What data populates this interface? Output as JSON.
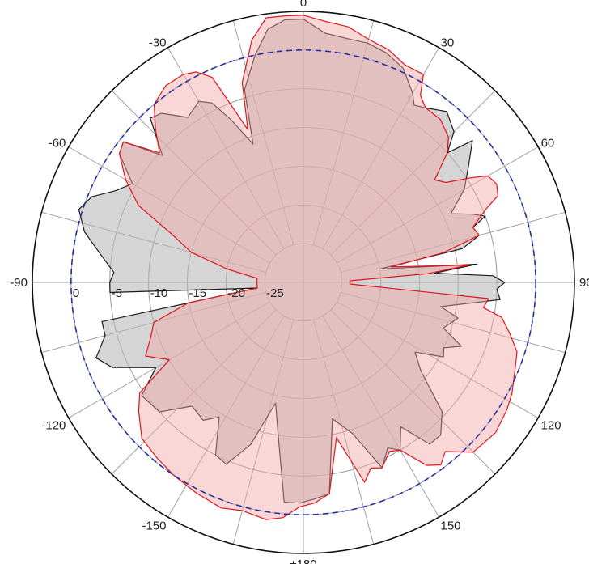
{
  "chart_data": {
    "type": "polar-area",
    "angle_unit": "degrees",
    "angle_zero": "top",
    "angle_direction": "clockwise",
    "angle_ticks": [
      0,
      30,
      60,
      90,
      120,
      150,
      180,
      -150,
      -120,
      -90,
      -60,
      -30
    ],
    "angle_tick_labels": [
      "0",
      "30",
      "60",
      "90",
      "120",
      "150",
      "±180",
      "-150",
      "-120",
      "-90",
      "-60",
      "-30"
    ],
    "r_range": [
      -30,
      5
    ],
    "r_ticks": [
      -25,
      -20,
      -15,
      -10,
      -5,
      0
    ],
    "r_tick_labels": [
      "-25",
      "-20",
      "-15",
      "-10",
      "-5",
      "0"
    ],
    "r_label_angle": -90,
    "reference_level": 0,
    "grid": true,
    "colors": {
      "series_black_line": "#1a1a1a",
      "series_black_fill": "#b9b9b9",
      "series_red_line": "#e0151b",
      "series_red_fill": "#f4a7a7",
      "reference_line": "#1f2ea8",
      "grid": "#a0a0a0"
    },
    "series": [
      {
        "style": "black",
        "points": [
          [
            0,
            4.0
          ],
          [
            5,
            2.3
          ],
          [
            10,
            2.0
          ],
          [
            15,
            2.0
          ],
          [
            20,
            1.5
          ],
          [
            25,
            0.5
          ],
          [
            30,
            -1.8
          ],
          [
            32,
            -3.0
          ],
          [
            35,
            -2.5
          ],
          [
            40,
            -1.2
          ],
          [
            45,
            -2.5
          ],
          [
            48,
            -5.0
          ],
          [
            50,
            -1.5
          ],
          [
            55,
            -4.0
          ],
          [
            60,
            -6.0
          ],
          [
            65,
            -9.0
          ],
          [
            68,
            -6.5
          ],
          [
            70,
            -5.0
          ],
          [
            72,
            -7.0
          ],
          [
            75,
            -6.5
          ],
          [
            78,
            -9.0
          ],
          [
            80,
            -20.0
          ],
          [
            84,
            -7.5
          ],
          [
            86,
            -13.0
          ],
          [
            88,
            -5.5
          ],
          [
            90,
            -4.0
          ],
          [
            92,
            -5.0
          ],
          [
            95,
            -4.5
          ],
          [
            100,
            -12.0
          ],
          [
            103,
            -9.5
          ],
          [
            108,
            -11.0
          ],
          [
            112,
            -8.0
          ],
          [
            115,
            -10.0
          ],
          [
            118,
            -9.5
          ],
          [
            122,
            -13.0
          ],
          [
            127,
            -11.0
          ],
          [
            133,
            -5.5
          ],
          [
            138,
            -3.5
          ],
          [
            142,
            -3.5
          ],
          [
            146,
            -7.5
          ],
          [
            150,
            -5.0
          ],
          [
            153,
            -6.0
          ],
          [
            157,
            -4.0
          ],
          [
            162,
            -9.5
          ],
          [
            168,
            -12.0
          ],
          [
            173,
            -2.5
          ],
          [
            177,
            -2.0
          ],
          [
            181,
            -1.5
          ],
          [
            185,
            -1.5
          ],
          [
            189,
            -9.5
          ],
          [
            193,
            -14.0
          ],
          [
            198,
            -8.0
          ],
          [
            203,
            -4.5
          ],
          [
            207,
            -5.0
          ],
          [
            212,
            -9.5
          ],
          [
            216,
            -8.0
          ],
          [
            222,
            -8.5
          ],
          [
            228,
            -5.0
          ],
          [
            235,
            -4.5
          ],
          [
            240,
            -8.0
          ],
          [
            246,
            -3.0
          ],
          [
            250,
            -1.5
          ],
          [
            255,
            -3.5
          ],
          [
            259,
            -3.5
          ],
          [
            263,
            -24.0
          ],
          [
            267,
            -5.0
          ],
          [
            270,
            -5.0
          ],
          [
            273,
            -5.5
          ],
          [
            278,
            -3.5
          ],
          [
            283,
            -1.0
          ],
          [
            288,
            0.5
          ],
          [
            292,
            -0.5
          ],
          [
            296,
            -3.0
          ],
          [
            300,
            -4.5
          ],
          [
            305,
            -1.0
          ],
          [
            308,
            -0.5
          ],
          [
            312,
            -5.5
          ],
          [
            317,
            -1.0
          ],
          [
            320,
            -1.5
          ],
          [
            325,
            -4.0
          ],
          [
            330,
            -3.0
          ],
          [
            333,
            -4.0
          ],
          [
            336,
            -7.0
          ],
          [
            340,
            -11.0
          ],
          [
            343,
            -4.0
          ],
          [
            348,
            0.0
          ],
          [
            352,
            3.0
          ],
          [
            356,
            4.0
          ],
          [
            360,
            4.0
          ]
        ]
      },
      {
        "style": "red",
        "points": [
          [
            0,
            4.5
          ],
          [
            5,
            3.8
          ],
          [
            10,
            3.5
          ],
          [
            15,
            2.5
          ],
          [
            20,
            2.0
          ],
          [
            25,
            1.0
          ],
          [
            30,
            1.0
          ],
          [
            32,
            -1.5
          ],
          [
            35,
            -2.5
          ],
          [
            40,
            -2.5
          ],
          [
            45,
            -3.5
          ],
          [
            48,
            -5.0
          ],
          [
            52,
            -8.5
          ],
          [
            55,
            -7.5
          ],
          [
            58,
            -4.5
          ],
          [
            60,
            -2.5
          ],
          [
            63,
            -2.0
          ],
          [
            66,
            -2.5
          ],
          [
            68,
            -4.5
          ],
          [
            72,
            -7.0
          ],
          [
            75,
            -6.5
          ],
          [
            78,
            -11.5
          ],
          [
            80,
            -18.5
          ],
          [
            84,
            -8.5
          ],
          [
            86,
            -14.0
          ],
          [
            88,
            -24.0
          ],
          [
            90,
            -24.0
          ],
          [
            92,
            -24.0
          ],
          [
            95,
            -6.0
          ],
          [
            98,
            -6.5
          ],
          [
            100,
            -4.0
          ],
          [
            104,
            -2.5
          ],
          [
            108,
            -1.0
          ],
          [
            112,
            -0.5
          ],
          [
            118,
            0.5
          ],
          [
            122,
            1.0
          ],
          [
            128,
            1.5
          ],
          [
            135,
            1.0
          ],
          [
            140,
            -1.5
          ],
          [
            143,
            -0.5
          ],
          [
            146,
            -1.5
          ],
          [
            150,
            -5.0
          ],
          [
            153,
            -5.5
          ],
          [
            157,
            -4.0
          ],
          [
            160,
            -4.5
          ],
          [
            163,
            -3.0
          ],
          [
            168,
            -9.5
          ],
          [
            173,
            -2.5
          ],
          [
            177,
            -1.5
          ],
          [
            181,
            -1.0
          ],
          [
            185,
            0.5
          ],
          [
            189,
            1.0
          ],
          [
            195,
            0.5
          ],
          [
            200,
            1.0
          ],
          [
            207,
            0.5
          ],
          [
            214,
            0.0
          ],
          [
            220,
            -0.5
          ],
          [
            226,
            -1.0
          ],
          [
            232,
            -3.0
          ],
          [
            236,
            -4.5
          ],
          [
            240,
            -10.0
          ],
          [
            245,
            -7.5
          ],
          [
            250,
            -9.0
          ],
          [
            255,
            -10.0
          ],
          [
            260,
            -15.0
          ],
          [
            263,
            -24.0
          ],
          [
            267,
            -24.0
          ],
          [
            270,
            -24.0
          ],
          [
            275,
            -24.0
          ],
          [
            280,
            -20.0
          ],
          [
            285,
            -15.0
          ],
          [
            290,
            -12.0
          ],
          [
            295,
            -6.5
          ],
          [
            300,
            -3.5
          ],
          [
            305,
            -1.0
          ],
          [
            308,
            -0.5
          ],
          [
            312,
            -5.0
          ],
          [
            316,
            -2.5
          ],
          [
            320,
            0.0
          ],
          [
            325,
            1.0
          ],
          [
            330,
            1.0
          ],
          [
            333,
            0.5
          ],
          [
            336,
            -1.0
          ],
          [
            340,
            -9.0
          ],
          [
            343,
            -3.0
          ],
          [
            348,
            2.0
          ],
          [
            352,
            4.5
          ],
          [
            356,
            4.5
          ],
          [
            360,
            4.5
          ]
        ]
      }
    ]
  }
}
